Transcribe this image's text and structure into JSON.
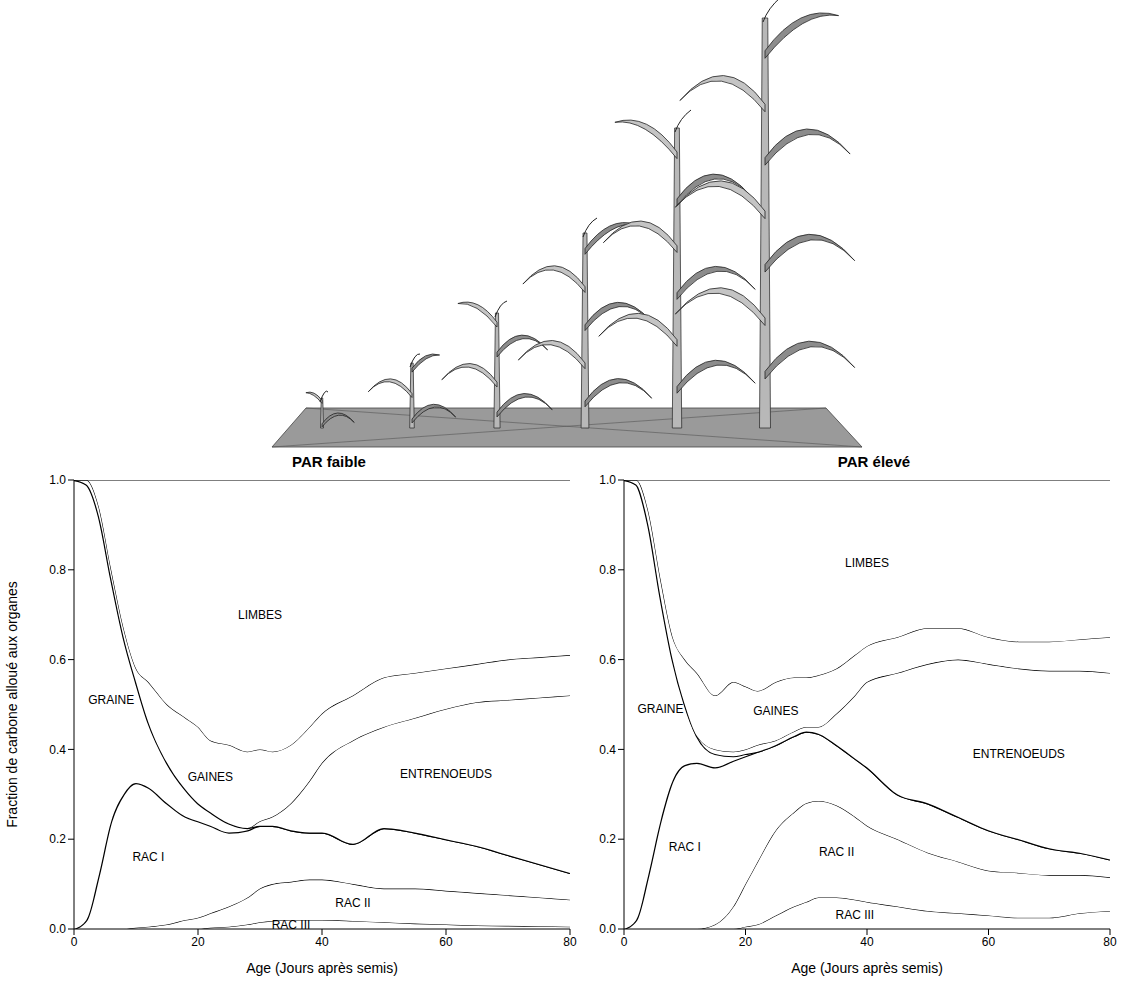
{
  "chart_data": [
    {
      "type": "area",
      "stacked": true,
      "title": "PAR faible",
      "xlabel": "Age (Jours après semis)",
      "ylabel": "Fraction de carbone alloué aux organes",
      "x": [
        0,
        2,
        4,
        6,
        8,
        10,
        12,
        15,
        18,
        20,
        22,
        25,
        28,
        30,
        32,
        35,
        38,
        40,
        45,
        50,
        55,
        60,
        65,
        70,
        75,
        80
      ],
      "xlim": [
        0,
        80
      ],
      "xticks": [
        0,
        20,
        40,
        60,
        80
      ],
      "ylim": [
        0,
        1
      ],
      "yticks": [
        {
          "value": 0,
          "label": "0.0"
        },
        0.2,
        0.4,
        0.6,
        0.8,
        {
          "value": 1,
          "label": "1.0"
        }
      ],
      "series": [
        {
          "name": "RAC III",
          "color": "#000000",
          "values": [
            0,
            0,
            0,
            0,
            0,
            0,
            0,
            0,
            0,
            0,
            0.003,
            0.005,
            0.01,
            0.015,
            0.018,
            0.02,
            0.02,
            0.02,
            0.018,
            0.015,
            0.012,
            0.01,
            0.008,
            0.007,
            0.006,
            0.005
          ]
        },
        {
          "name": "RAC II",
          "color": "#000000",
          "values": [
            0,
            0,
            0,
            0,
            0,
            0.003,
            0.005,
            0.01,
            0.02,
            0.025,
            0.032,
            0.045,
            0.06,
            0.075,
            0.082,
            0.085,
            0.09,
            0.09,
            0.082,
            0.075,
            0.078,
            0.075,
            0.072,
            0.068,
            0.064,
            0.06
          ]
        },
        {
          "name": "RAC I",
          "color": "#000000",
          "values": [
            0,
            0.02,
            0.12,
            0.24,
            0.3,
            0.322,
            0.31,
            0.27,
            0.23,
            0.215,
            0.195,
            0.165,
            0.15,
            0.14,
            0.13,
            0.115,
            0.105,
            0.105,
            0.09,
            0.135,
            0.125,
            0.115,
            0.105,
            0.09,
            0.075,
            0.06
          ]
        },
        {
          "name": "GRAINE",
          "color": "#000000",
          "values": [
            1,
            0.97,
            0.8,
            0.54,
            0.35,
            0.225,
            0.145,
            0.09,
            0.06,
            0.04,
            0.03,
            0.02,
            0.005,
            0,
            0,
            0,
            0,
            0,
            0,
            0,
            0,
            0,
            0,
            0,
            0,
            0
          ]
        },
        {
          "name": "ENTRENOEUDS",
          "color": "#000000",
          "values": [
            0,
            0,
            0,
            0,
            0,
            0,
            0,
            0,
            0,
            0,
            0,
            0,
            0,
            0.01,
            0.02,
            0.06,
            0.115,
            0.155,
            0.23,
            0.225,
            0.255,
            0.29,
            0.32,
            0.345,
            0.37,
            0.395
          ]
        },
        {
          "name": "GAINES",
          "color": "#000000",
          "values": [
            0,
            0.01,
            0.02,
            0.02,
            0.02,
            0.03,
            0.09,
            0.13,
            0.16,
            0.17,
            0.16,
            0.175,
            0.17,
            0.16,
            0.145,
            0.13,
            0.12,
            0.11,
            0.1,
            0.11,
            0.1,
            0.09,
            0.085,
            0.09,
            0.09,
            0.09
          ]
        },
        {
          "name": "LIMBES",
          "color": "#000000",
          "values": [
            0,
            0,
            0.06,
            0.2,
            0.33,
            0.42,
            0.45,
            0.5,
            0.53,
            0.55,
            0.58,
            0.59,
            0.605,
            0.6,
            0.605,
            0.59,
            0.55,
            0.52,
            0.48,
            0.44,
            0.43,
            0.42,
            0.41,
            0.4,
            0.395,
            0.39
          ]
        }
      ]
    },
    {
      "type": "area",
      "stacked": true,
      "title": "PAR élevé",
      "xlabel": "Age (Jours après semis)",
      "x": [
        0,
        2,
        4,
        6,
        8,
        10,
        12,
        15,
        18,
        20,
        22,
        25,
        28,
        30,
        32,
        35,
        38,
        40,
        45,
        50,
        55,
        60,
        65,
        70,
        75,
        80
      ],
      "xlim": [
        0,
        80
      ],
      "xticks": [
        0,
        20,
        40,
        60,
        80
      ],
      "ylim": [
        0,
        1
      ],
      "yticks": [
        {
          "value": 0,
          "label": "0.0"
        },
        0.2,
        0.4,
        0.6,
        0.8,
        {
          "value": 1,
          "label": "1.0"
        }
      ],
      "series": [
        {
          "name": "RAC III",
          "color": "#000000",
          "values": [
            0,
            0,
            0,
            0,
            0,
            0,
            0,
            0,
            0,
            0.005,
            0.01,
            0.03,
            0.05,
            0.06,
            0.07,
            0.07,
            0.065,
            0.06,
            0.05,
            0.04,
            0.035,
            0.03,
            0.025,
            0.025,
            0.035,
            0.04
          ]
        },
        {
          "name": "RAC II",
          "color": "#000000",
          "values": [
            0,
            0,
            0,
            0,
            0,
            0,
            0,
            0.01,
            0.05,
            0.095,
            0.14,
            0.19,
            0.21,
            0.22,
            0.215,
            0.205,
            0.185,
            0.17,
            0.15,
            0.13,
            0.115,
            0.1,
            0.1,
            0.095,
            0.085,
            0.075
          ]
        },
        {
          "name": "RAC I",
          "color": "#000000",
          "values": [
            0,
            0.02,
            0.12,
            0.24,
            0.33,
            0.365,
            0.37,
            0.35,
            0.325,
            0.285,
            0.245,
            0.19,
            0.17,
            0.16,
            0.15,
            0.135,
            0.13,
            0.13,
            0.1,
            0.11,
            0.1,
            0.09,
            0.075,
            0.06,
            0.05,
            0.04
          ]
        },
        {
          "name": "GRAINE",
          "color": "#000000",
          "values": [
            1,
            0.97,
            0.78,
            0.5,
            0.27,
            0.135,
            0.06,
            0.03,
            0.01,
            0.005,
            0,
            0,
            0,
            0,
            0,
            0,
            0,
            0,
            0,
            0,
            0,
            0,
            0,
            0,
            0,
            0
          ]
        },
        {
          "name": "ENTRENOEUDS",
          "color": "#000000",
          "values": [
            0,
            0,
            0,
            0,
            0,
            0,
            0,
            0.01,
            0.01,
            0.01,
            0.015,
            0.01,
            0.01,
            0.01,
            0.015,
            0.07,
            0.14,
            0.19,
            0.27,
            0.31,
            0.35,
            0.37,
            0.38,
            0.395,
            0.405,
            0.415
          ]
        },
        {
          "name": "GAINES",
          "color": "#000000",
          "values": [
            0,
            0.01,
            0.03,
            0.04,
            0.05,
            0.1,
            0.14,
            0.12,
            0.155,
            0.14,
            0.12,
            0.13,
            0.12,
            0.11,
            0.115,
            0.1,
            0.09,
            0.08,
            0.08,
            0.08,
            0.07,
            0.06,
            0.06,
            0.065,
            0.07,
            0.08
          ]
        },
        {
          "name": "LIMBES",
          "color": "#000000",
          "values": [
            0,
            0,
            0.07,
            0.22,
            0.35,
            0.4,
            0.43,
            0.48,
            0.45,
            0.46,
            0.47,
            0.45,
            0.44,
            0.44,
            0.435,
            0.42,
            0.39,
            0.37,
            0.35,
            0.33,
            0.33,
            0.35,
            0.36,
            0.36,
            0.355,
            0.35
          ]
        }
      ]
    }
  ]
}
